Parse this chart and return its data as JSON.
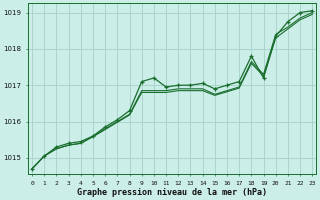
{
  "title": "Graphe pression niveau de la mer (hPa)",
  "bg_color": "#cceee8",
  "grid_color": "#aad4cc",
  "line_color": "#1a6e2e",
  "ylim": [
    1014.55,
    1019.25
  ],
  "yticks": [
    1015,
    1016,
    1017,
    1018,
    1019
  ],
  "hours": [
    0,
    1,
    2,
    3,
    4,
    5,
    6,
    7,
    8,
    9,
    10,
    11,
    12,
    13,
    14,
    15,
    16,
    17,
    18,
    19,
    20,
    21,
    22,
    23
  ],
  "line_marker": [
    1014.7,
    1015.05,
    1015.3,
    1015.4,
    1015.45,
    1015.6,
    1015.85,
    1016.05,
    1016.3,
    1017.1,
    1017.2,
    1016.95,
    1017.0,
    1017.0,
    1017.05,
    1016.9,
    1017.0,
    1017.1,
    1017.8,
    1017.2,
    1018.35,
    1018.75,
    1019.0,
    1019.05
  ],
  "line_smooth1": [
    1014.7,
    1015.05,
    1015.25,
    1015.35,
    1015.4,
    1015.6,
    1015.8,
    1016.0,
    1016.2,
    1016.85,
    1016.85,
    1016.85,
    1016.9,
    1016.9,
    1016.9,
    1016.75,
    1016.85,
    1016.95,
    1017.65,
    1017.3,
    1018.4,
    1018.6,
    1018.85,
    1019.0
  ],
  "line_smooth2": [
    1014.7,
    1015.05,
    1015.25,
    1015.35,
    1015.4,
    1015.58,
    1015.78,
    1015.98,
    1016.18,
    1016.8,
    1016.8,
    1016.8,
    1016.85,
    1016.85,
    1016.85,
    1016.72,
    1016.82,
    1016.92,
    1017.6,
    1017.25,
    1018.3,
    1018.55,
    1018.8,
    1018.95
  ]
}
